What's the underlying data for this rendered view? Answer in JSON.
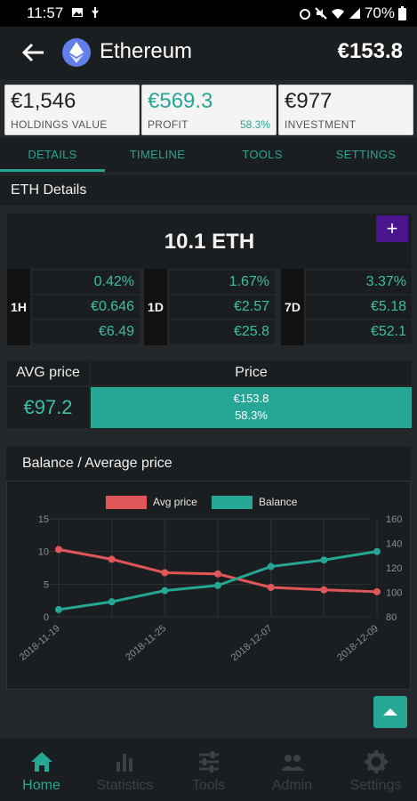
{
  "status_bar": {
    "time": "11:57",
    "battery": "70%"
  },
  "app_bar": {
    "title": "Ethereum",
    "price": "€153.8"
  },
  "summary": [
    {
      "value": "€1,546",
      "label": "HOLDINGS VALUE",
      "pct": ""
    },
    {
      "value": "€569.3",
      "label": "PROFIT",
      "pct": "58.3%"
    },
    {
      "value": "€977",
      "label": "INVESTMENT",
      "pct": ""
    }
  ],
  "tabs": [
    "DETAILS",
    "TIMELINE",
    "TOOLS",
    "SETTINGS"
  ],
  "details": {
    "header": "ETH Details",
    "quantity": "10.1 ETH",
    "add_label": "+",
    "periods": [
      {
        "label": "1H",
        "values": [
          "0.42%",
          "€0.646",
          "€6.49"
        ]
      },
      {
        "label": "1D",
        "values": [
          "1.67%",
          "€2.57",
          "€25.8"
        ]
      },
      {
        "label": "7D",
        "values": [
          "3.37%",
          "€5.18",
          "€52.1"
        ]
      }
    ]
  },
  "avg": {
    "avg_label": "AVG price",
    "avg_value": "€97.2",
    "price_label": "Price",
    "price_value": "€153.8",
    "price_pct": "58.3%"
  },
  "chart_header": "Balance / Average price",
  "chart_data": {
    "type": "line",
    "categories": [
      "2018-11-19",
      "",
      "2018-11-25",
      "",
      "2018-12-07",
      "",
      "2018-12-09"
    ],
    "series": [
      {
        "name": "Avg price",
        "axis": "right",
        "color": "#e15759",
        "values": [
          135,
          127,
          116,
          115,
          104,
          102,
          100.5
        ]
      },
      {
        "name": "Balance",
        "axis": "left",
        "color": "#26a694",
        "values": [
          1.1,
          2.3,
          4,
          4.8,
          7.7,
          8.7,
          10
        ]
      }
    ],
    "y_left": {
      "ticks": [
        "15",
        "10",
        "5",
        "0"
      ],
      "range": [
        0,
        15
      ]
    },
    "y_right": {
      "ticks": [
        "160",
        "140",
        "120",
        "100",
        "80"
      ],
      "range": [
        80,
        160
      ]
    },
    "legend_position": "top",
    "grid": true
  },
  "bottom_nav": [
    "Home",
    "Statistics",
    "Tools",
    "Admin",
    "Settings"
  ],
  "colors": {
    "accent": "#26a694",
    "purple": "#4a148c",
    "avg_line": "#e15759"
  }
}
